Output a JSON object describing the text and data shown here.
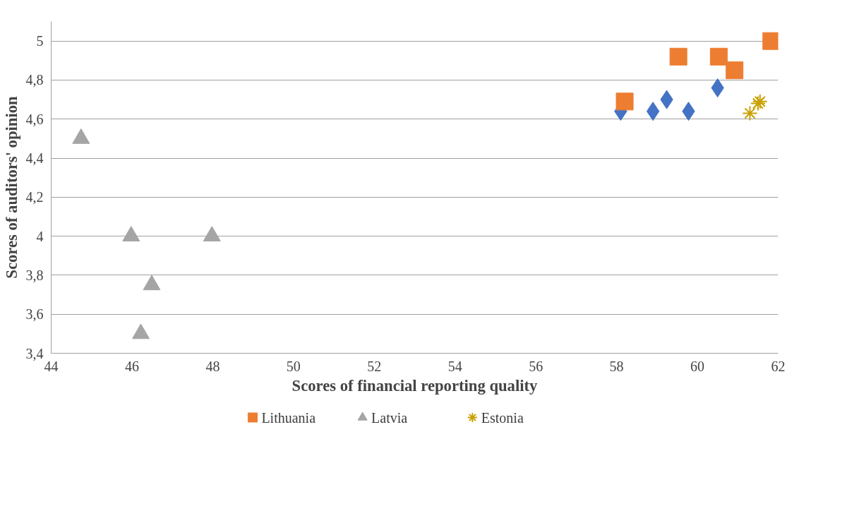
{
  "chart_data": {
    "type": "scatter",
    "xlabel": "Scores of financial reporting quality",
    "ylabel": "Scores of auditors' opinion",
    "xlim": [
      44,
      62
    ],
    "xticks": [
      44,
      46,
      48,
      50,
      52,
      54,
      56,
      58,
      60,
      62
    ],
    "ylim": [
      3.4,
      5.1
    ],
    "yticks": [
      {
        "value": 3.4,
        "label": "3,4"
      },
      {
        "value": 3.6,
        "label": "3,6"
      },
      {
        "value": 3.8,
        "label": "3,8"
      },
      {
        "value": 4,
        "label": "4"
      },
      {
        "value": 4.2,
        "label": "4,2"
      },
      {
        "value": 4.4,
        "label": "4,4"
      },
      {
        "value": 4.6,
        "label": "4,6"
      },
      {
        "value": 4.8,
        "label": "4,8"
      },
      {
        "value": 5,
        "label": "5"
      }
    ],
    "grid": "y",
    "legend": "bottom",
    "series": [
      {
        "color": "#4472c4",
        "marker": "diamond",
        "x": [
          58.1,
          58.9,
          59.24,
          59.78,
          60.5
        ],
        "values": [
          4.64,
          4.64,
          4.7,
          4.64,
          4.76
        ]
      },
      {
        "name": "Lithuania",
        "color": "#ed7d31",
        "marker": "square",
        "x": [
          58.2,
          59.53,
          60.53,
          60.92,
          61.83
        ],
        "values": [
          4.69,
          4.92,
          4.92,
          4.85,
          5.0
        ]
      },
      {
        "name": "Latvia",
        "color": "#a5a5a5",
        "marker": "triangle",
        "x": [
          44.74,
          45.98,
          47.98,
          46.49,
          46.22
        ],
        "values": [
          4.5,
          4.0,
          4.0,
          3.75,
          3.5
        ]
      },
      {
        "name": "Estonia",
        "color": "#c9a000",
        "marker": "cross",
        "x": [
          61.3,
          61.5,
          61.55
        ],
        "values": [
          4.63,
          4.68,
          4.69
        ]
      }
    ]
  }
}
